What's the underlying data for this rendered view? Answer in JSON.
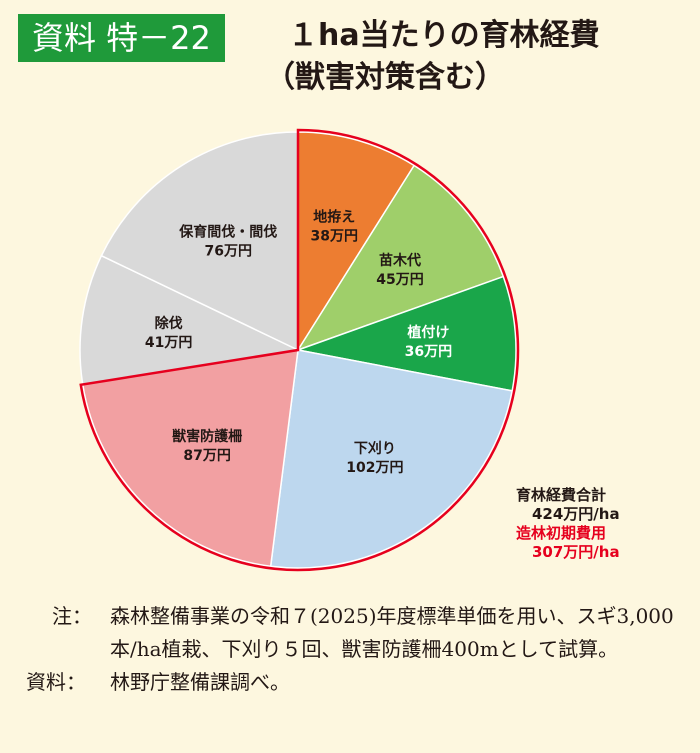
{
  "header": {
    "badge": "資料 特－22",
    "title": "１ha当たりの育林経費",
    "subtitle": "（獣害対策含む）"
  },
  "chart_data": {
    "type": "pie",
    "unit": "万円",
    "start": "top, clockwise",
    "slices": [
      {
        "name": "地拵え",
        "value": 38,
        "label": "38万円",
        "color": "#ed7d31",
        "text_color": "#231815"
      },
      {
        "name": "苗木代",
        "value": 45,
        "label": "45万円",
        "color": "#9fcf6a",
        "text_color": "#231815"
      },
      {
        "name": "植付け",
        "value": 36,
        "label": "36万円",
        "color": "#1aa64a",
        "text_color": "#ffffff"
      },
      {
        "name": "下刈り",
        "value": 102,
        "label": "102万円",
        "color": "#bdd7ee",
        "text_color": "#231815"
      },
      {
        "name": "獣害防護柵",
        "value": 87,
        "label": "87万円",
        "color": "#f2a0a2",
        "text_color": "#231815"
      },
      {
        "name": "除伐",
        "value": 41,
        "label": "41万円",
        "color": "#d9d9d9",
        "text_color": "#231815"
      },
      {
        "name": "保育間伐・間伐",
        "value": 76,
        "label": "76万円",
        "color": "#d9d9d9",
        "text_color": "#231815"
      }
    ],
    "highlight": {
      "slices": [
        "地拵え",
        "苗木代",
        "植付け",
        "下刈り",
        "獣害防護柵"
      ],
      "color": "#e6001e"
    },
    "total_label": "育林経費合計",
    "total_value": "424万円/ha",
    "initial_label": "造林初期費用",
    "initial_value": "307万円/ha"
  },
  "notes": [
    {
      "label": "注：",
      "text": "森林整備事業の令和７(2025)年度標準単価を用い、スギ3,000本/ha植栽、下刈り５回、獣害防護柵400mとして試算。"
    },
    {
      "label": "資料：",
      "text": "林野庁整備課調べ。"
    }
  ]
}
